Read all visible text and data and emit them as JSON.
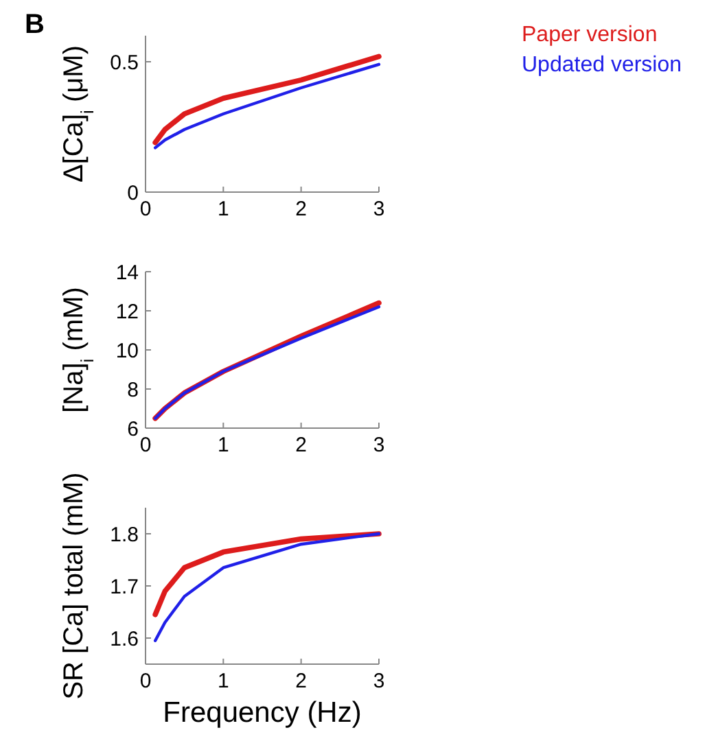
{
  "chart_data": [
    {
      "type": "line",
      "annotations": [
        "B"
      ],
      "ylabel": "Δ[Ca]$_{i}$ (μM)",
      "x": [
        0.125,
        0.25,
        0.5,
        1,
        2,
        3
      ],
      "xlim": [
        0,
        3
      ],
      "xticks": [
        0,
        1,
        2,
        3
      ],
      "ylim": [
        0,
        0.6
      ],
      "yticks": [
        0,
        0.5
      ],
      "legend": "top right",
      "series": [
        {
          "name": "Paper version",
          "color": "#dd1c1c",
          "values": [
            0.19,
            0.24,
            0.3,
            0.36,
            0.43,
            0.52
          ]
        },
        {
          "name": "Updated version",
          "color": "#2020e8",
          "values": [
            0.17,
            0.2,
            0.24,
            0.3,
            0.4,
            0.49
          ]
        }
      ]
    },
    {
      "type": "line",
      "ylabel": "[Na]$_{i}$ (mM)",
      "x": [
        0.125,
        0.25,
        0.5,
        1,
        2,
        3
      ],
      "xlim": [
        0,
        3
      ],
      "xticks": [
        0,
        1,
        2,
        3
      ],
      "ylim": [
        6,
        14
      ],
      "yticks": [
        6,
        8,
        10,
        12,
        14
      ],
      "series": [
        {
          "color": "#dd1c1c",
          "values": [
            6.5,
            7.0,
            7.8,
            8.9,
            10.7,
            12.4
          ]
        },
        {
          "color": "#2020e8",
          "values": [
            6.5,
            7.0,
            7.8,
            8.9,
            10.6,
            12.2
          ]
        }
      ]
    },
    {
      "type": "line",
      "ylabel": "SR [Ca] total (mM)",
      "xlabel": "Frequency (Hz)",
      "x": [
        0.125,
        0.25,
        0.5,
        1,
        2,
        3
      ],
      "xlim": [
        0,
        3
      ],
      "xticks": [
        0,
        1,
        2,
        3
      ],
      "ylim": [
        1.55,
        1.85
      ],
      "yticks": [
        1.6,
        1.7,
        1.8
      ],
      "series": [
        {
          "color": "#dd1c1c",
          "values": [
            1.645,
            1.69,
            1.735,
            1.765,
            1.79,
            1.8
          ]
        },
        {
          "color": "#2020e8",
          "values": [
            1.595,
            1.63,
            1.68,
            1.735,
            1.78,
            1.8
          ]
        }
      ]
    }
  ]
}
